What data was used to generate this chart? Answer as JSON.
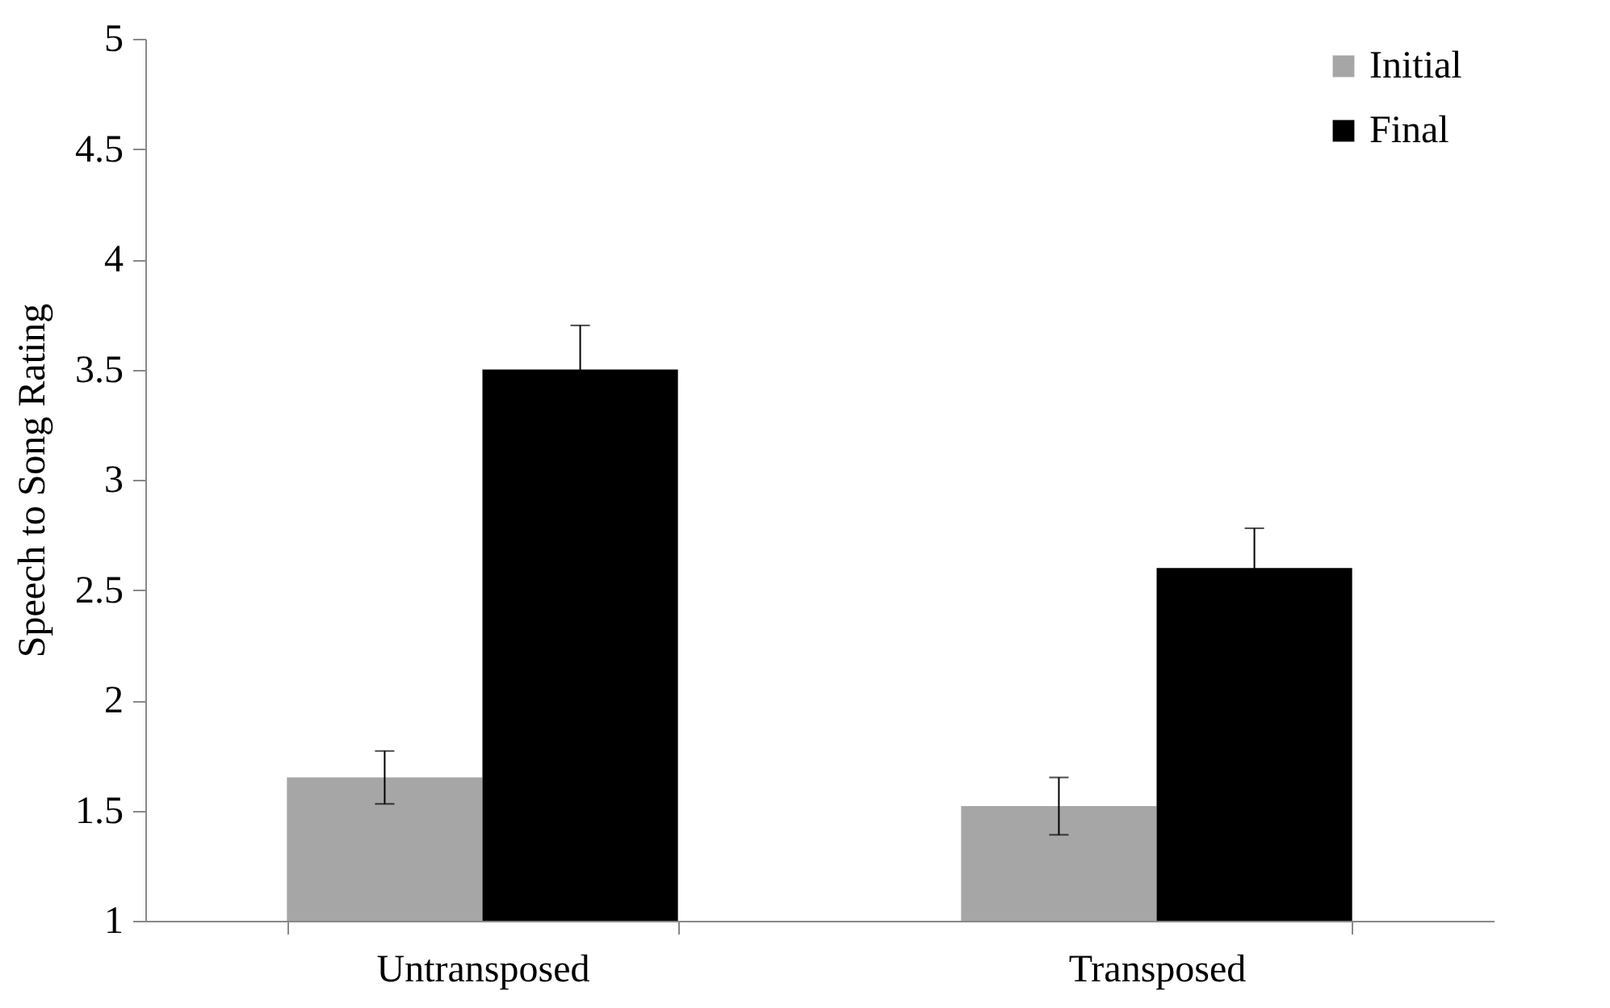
{
  "chart_data": {
    "type": "bar",
    "ylabel": "Speech to Song Rating",
    "categories": [
      "Untransposed",
      "Transposed"
    ],
    "series": [
      {
        "name": "Initial",
        "color": "#a6a6a6",
        "values": [
          1.65,
          1.52
        ],
        "errors": [
          0.12,
          0.13
        ]
      },
      {
        "name": "Final",
        "color": "#000000",
        "values": [
          3.5,
          2.6
        ],
        "errors": [
          0.2,
          0.18
        ]
      }
    ],
    "ylim": [
      1,
      5
    ],
    "yticks": [
      1,
      1.5,
      2,
      2.5,
      3,
      3.5,
      4,
      4.5,
      5
    ],
    "grid": false,
    "legend": "top right"
  }
}
